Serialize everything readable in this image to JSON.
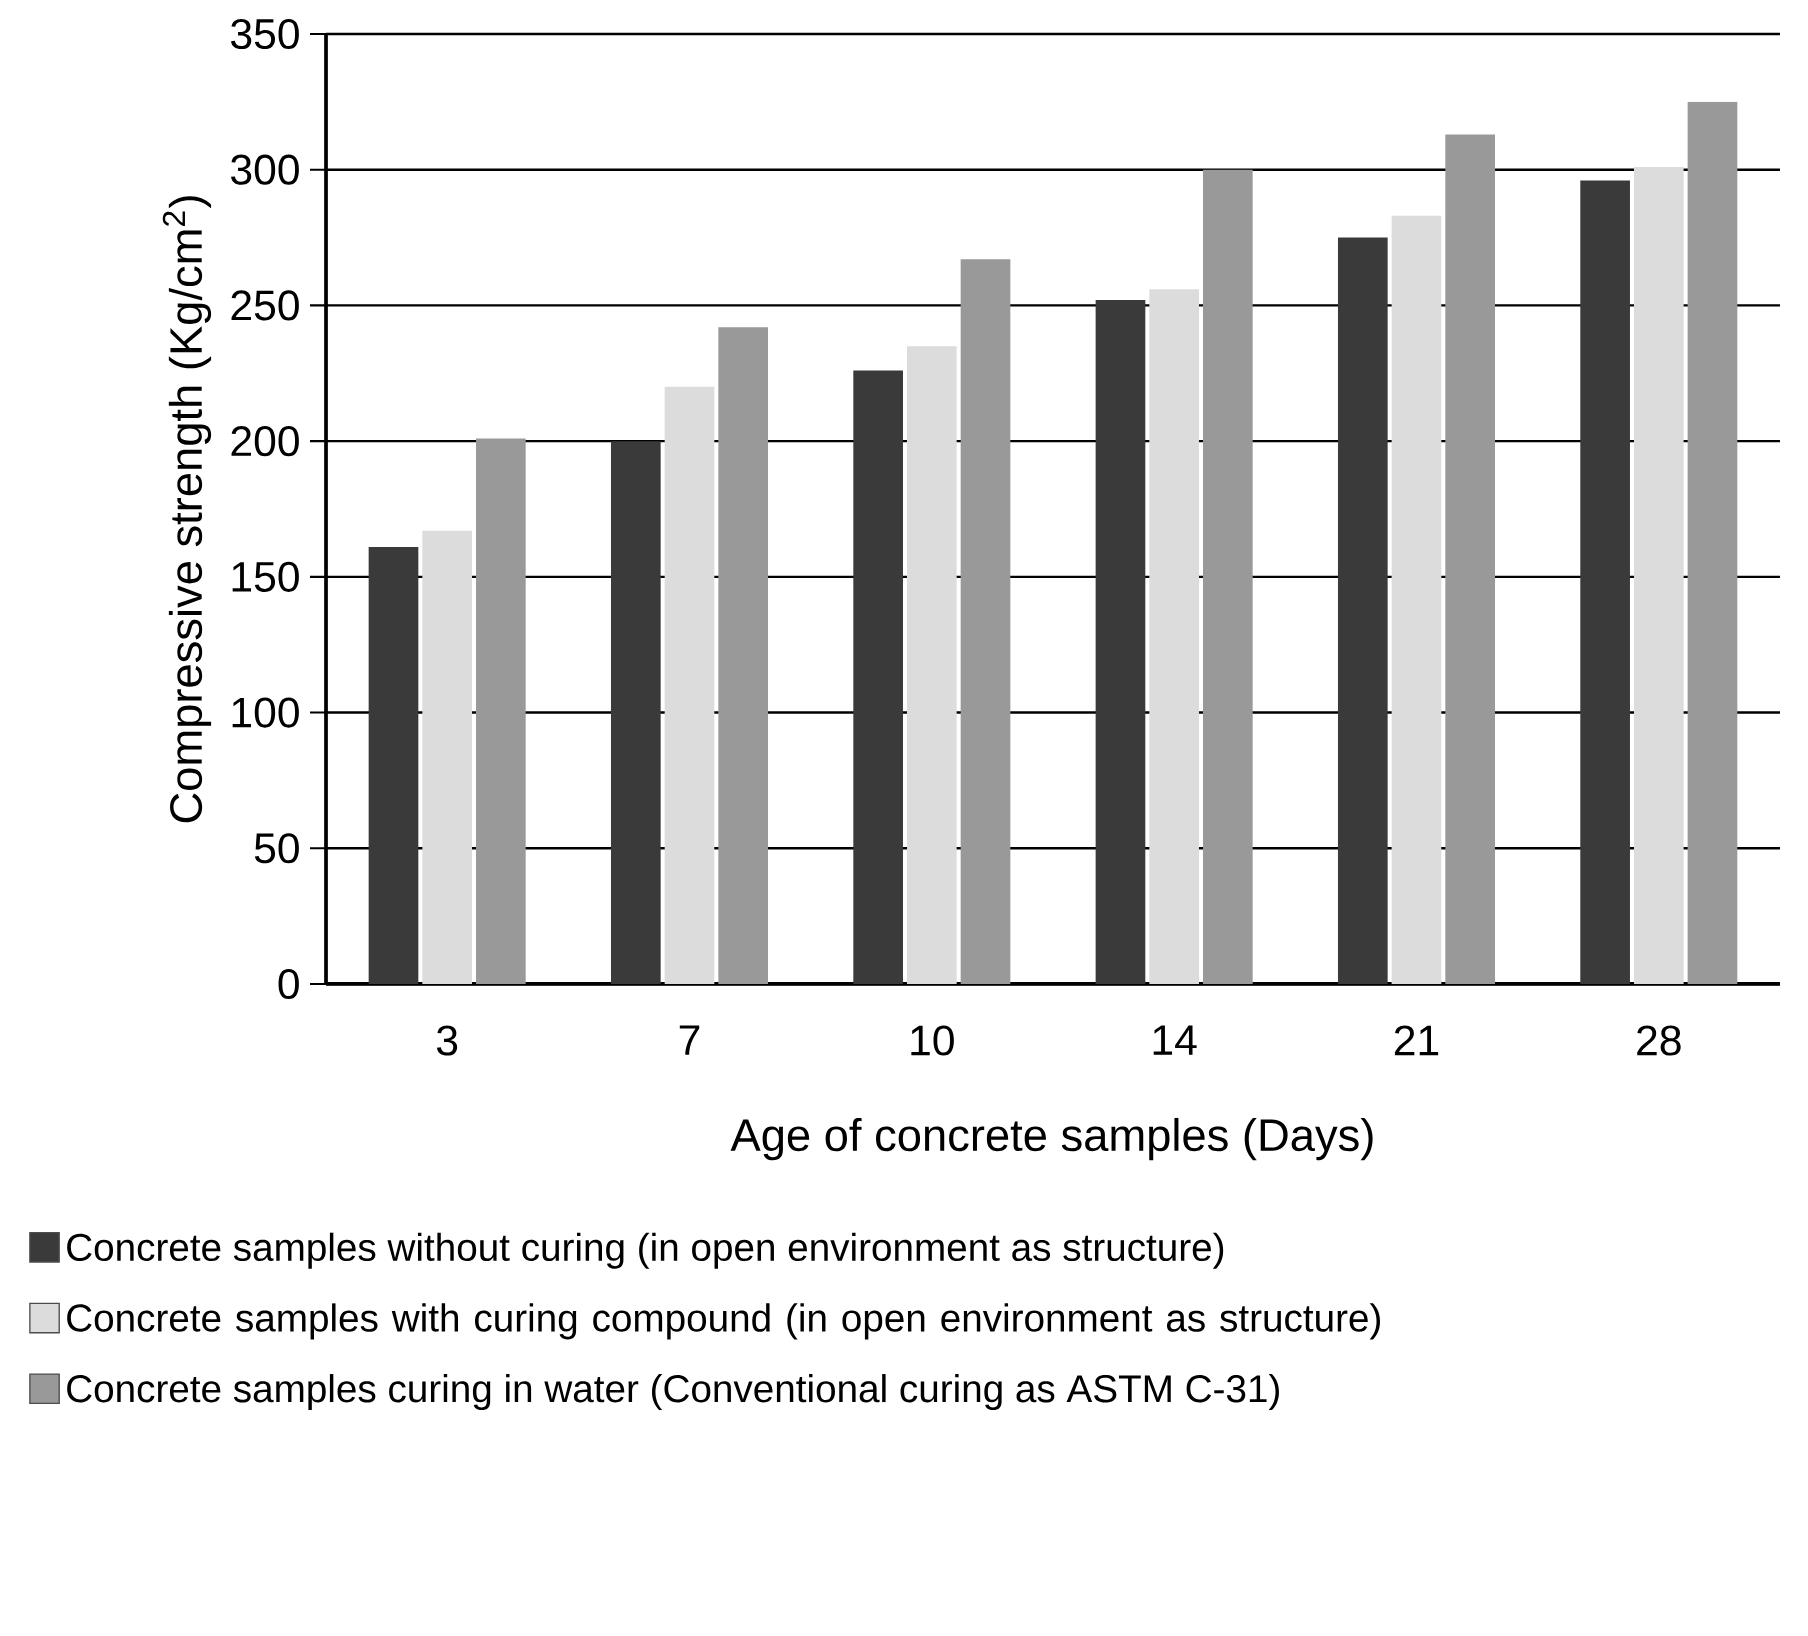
{
  "chart_data": {
    "type": "bar",
    "xlabel": "Age of concrete samples (Days)",
    "ylabel": "Compressive strength (Kg/cm$^{2}$)",
    "categories": [
      "3",
      "7",
      "10",
      "14",
      "21",
      "28"
    ],
    "series": [
      {
        "name": "Concrete samples without curing  (in open environment as structure)",
        "color": "#3a3a3a",
        "values": [
          161,
          200,
          226,
          252,
          275,
          296
        ]
      },
      {
        "name": "Concrete samples with curing compound  (in open environment as structure)",
        "color": "#dcdcdc",
        "values": [
          167,
          220,
          235,
          256,
          283,
          301
        ]
      },
      {
        "name": "Concrete samples curing in water  (Conventional curing as ASTM C-31)",
        "color": "#999999",
        "values": [
          201,
          242,
          267,
          300,
          313,
          325
        ]
      }
    ],
    "ylim": [
      0,
      350
    ],
    "yticks": [
      0,
      50,
      100,
      150,
      200,
      250,
      300,
      350
    ],
    "grid": "y",
    "legend": "bottom"
  }
}
